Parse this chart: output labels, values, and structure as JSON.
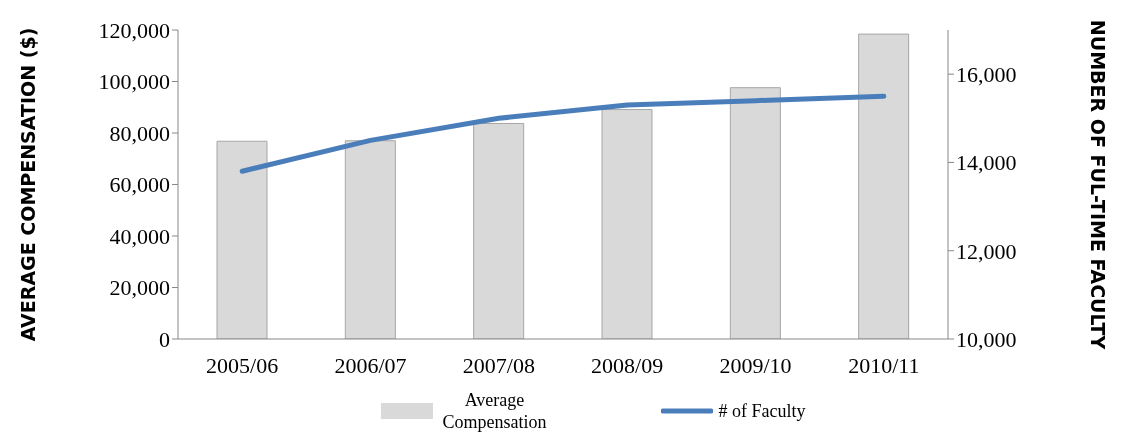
{
  "chart_data": {
    "type": "bar",
    "categories": [
      "2005/06",
      "2006/07",
      "2007/08",
      "2008/09",
      "2009/10",
      "2010/11"
    ],
    "series": [
      {
        "name": "Average Compensation",
        "color": "#d9d9d9",
        "values": [
          76800,
          77000,
          83700,
          89100,
          97600,
          118400
        ]
      },
      {
        "name": "# of Faculty",
        "type": "line",
        "axis": "y2",
        "color": "#4a7ebb",
        "values": [
          13800,
          14500,
          15000,
          15300,
          15400,
          15500
        ]
      }
    ],
    "ylabel": "AVERAGE COMPENSATION ($)",
    "y2label": "NUMBER OF FUL-TIME FACULTY",
    "ylim": [
      0,
      120000
    ],
    "yticks": [
      0,
      {
        "value": 20000,
        "label": "20,000"
      },
      {
        "value": 40000,
        "label": "40,000"
      },
      {
        "value": 60000,
        "label": "60,000"
      },
      {
        "value": 80000,
        "label": "80,000"
      },
      {
        "value": 100000,
        "label": "100,000"
      },
      {
        "value": 120000,
        "label": "120,000"
      }
    ],
    "y2lim": [
      10000,
      17000
    ],
    "y2ticks": [
      {
        "value": 10000,
        "label": "10,000"
      },
      {
        "value": 12000,
        "label": "12,000"
      },
      {
        "value": 14000,
        "label": "14,000"
      },
      {
        "value": 16000,
        "label": "16,000"
      }
    ],
    "grid": false,
    "legend": "bottom",
    "marker": "none",
    "line_style": "solid"
  }
}
